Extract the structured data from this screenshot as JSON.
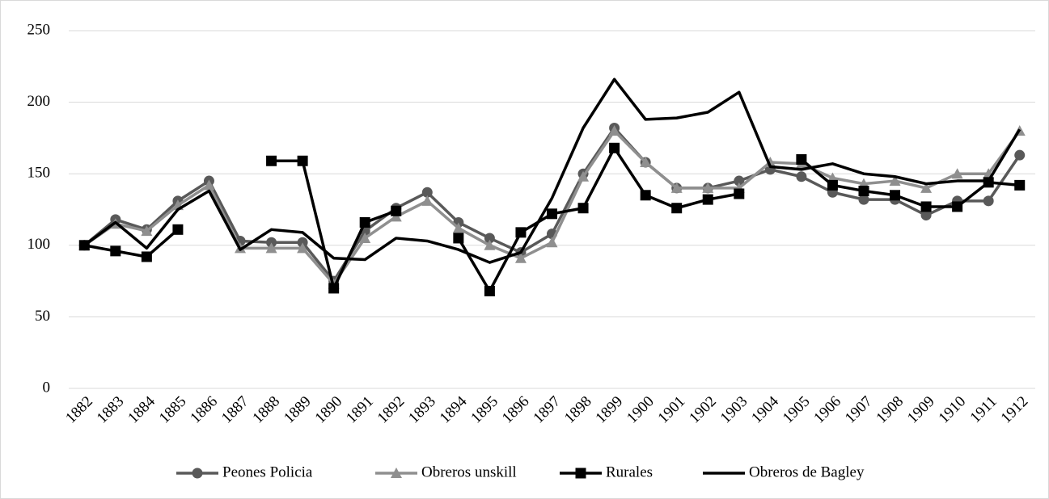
{
  "chart_data": {
    "type": "line",
    "categories": [
      "1882",
      "1883",
      "1884",
      "1885",
      "1886",
      "1887",
      "1888",
      "1889",
      "1890",
      "1891",
      "1892",
      "1893",
      "1894",
      "1895",
      "1896",
      "1897",
      "1898",
      "1899",
      "1900",
      "1901",
      "1902",
      "1903",
      "1904",
      "1905",
      "1906",
      "1907",
      "1908",
      "1909",
      "1910",
      "1911",
      "1912"
    ],
    "series": [
      {
        "name": "Peones Policia",
        "color": "#595959",
        "marker": "circle",
        "values": [
          100,
          118,
          111,
          131,
          145,
          103,
          102,
          102,
          75,
          110,
          126,
          137,
          116,
          105,
          95,
          108,
          150,
          182,
          158,
          140,
          140,
          145,
          153,
          148,
          137,
          132,
          132,
          121,
          131,
          131,
          163
        ]
      },
      {
        "name": "Obreros unskill",
        "color": "#8f8f8f",
        "marker": "triangle",
        "values": [
          100,
          115,
          110,
          128,
          142,
          98,
          98,
          98,
          73,
          105,
          120,
          131,
          112,
          100,
          91,
          102,
          148,
          180,
          158,
          140,
          140,
          140,
          158,
          157,
          147,
          143,
          145,
          140,
          150,
          150,
          180
        ]
      },
      {
        "name": "Rurales",
        "color": "#000000",
        "marker": "square",
        "values": [
          100,
          96,
          92,
          111,
          null,
          null,
          159,
          159,
          70,
          116,
          124,
          null,
          105,
          68,
          109,
          122,
          126,
          168,
          135,
          126,
          132,
          136,
          null,
          160,
          142,
          138,
          135,
          127,
          127,
          144,
          142
        ]
      },
      {
        "name": "Obreros de Bagley",
        "color": "#000000",
        "marker": "none",
        "values": [
          100,
          116,
          98,
          125,
          138,
          97,
          111,
          109,
          91,
          90,
          105,
          103,
          97,
          88,
          95,
          133,
          182,
          216,
          188,
          189,
          193,
          207,
          155,
          153,
          157,
          150,
          148,
          143,
          145,
          145,
          181
        ]
      }
    ],
    "ylim": [
      0,
      250
    ],
    "yticks": [
      0,
      50,
      100,
      150,
      200,
      250
    ],
    "grid": true,
    "legend": "bottom"
  }
}
